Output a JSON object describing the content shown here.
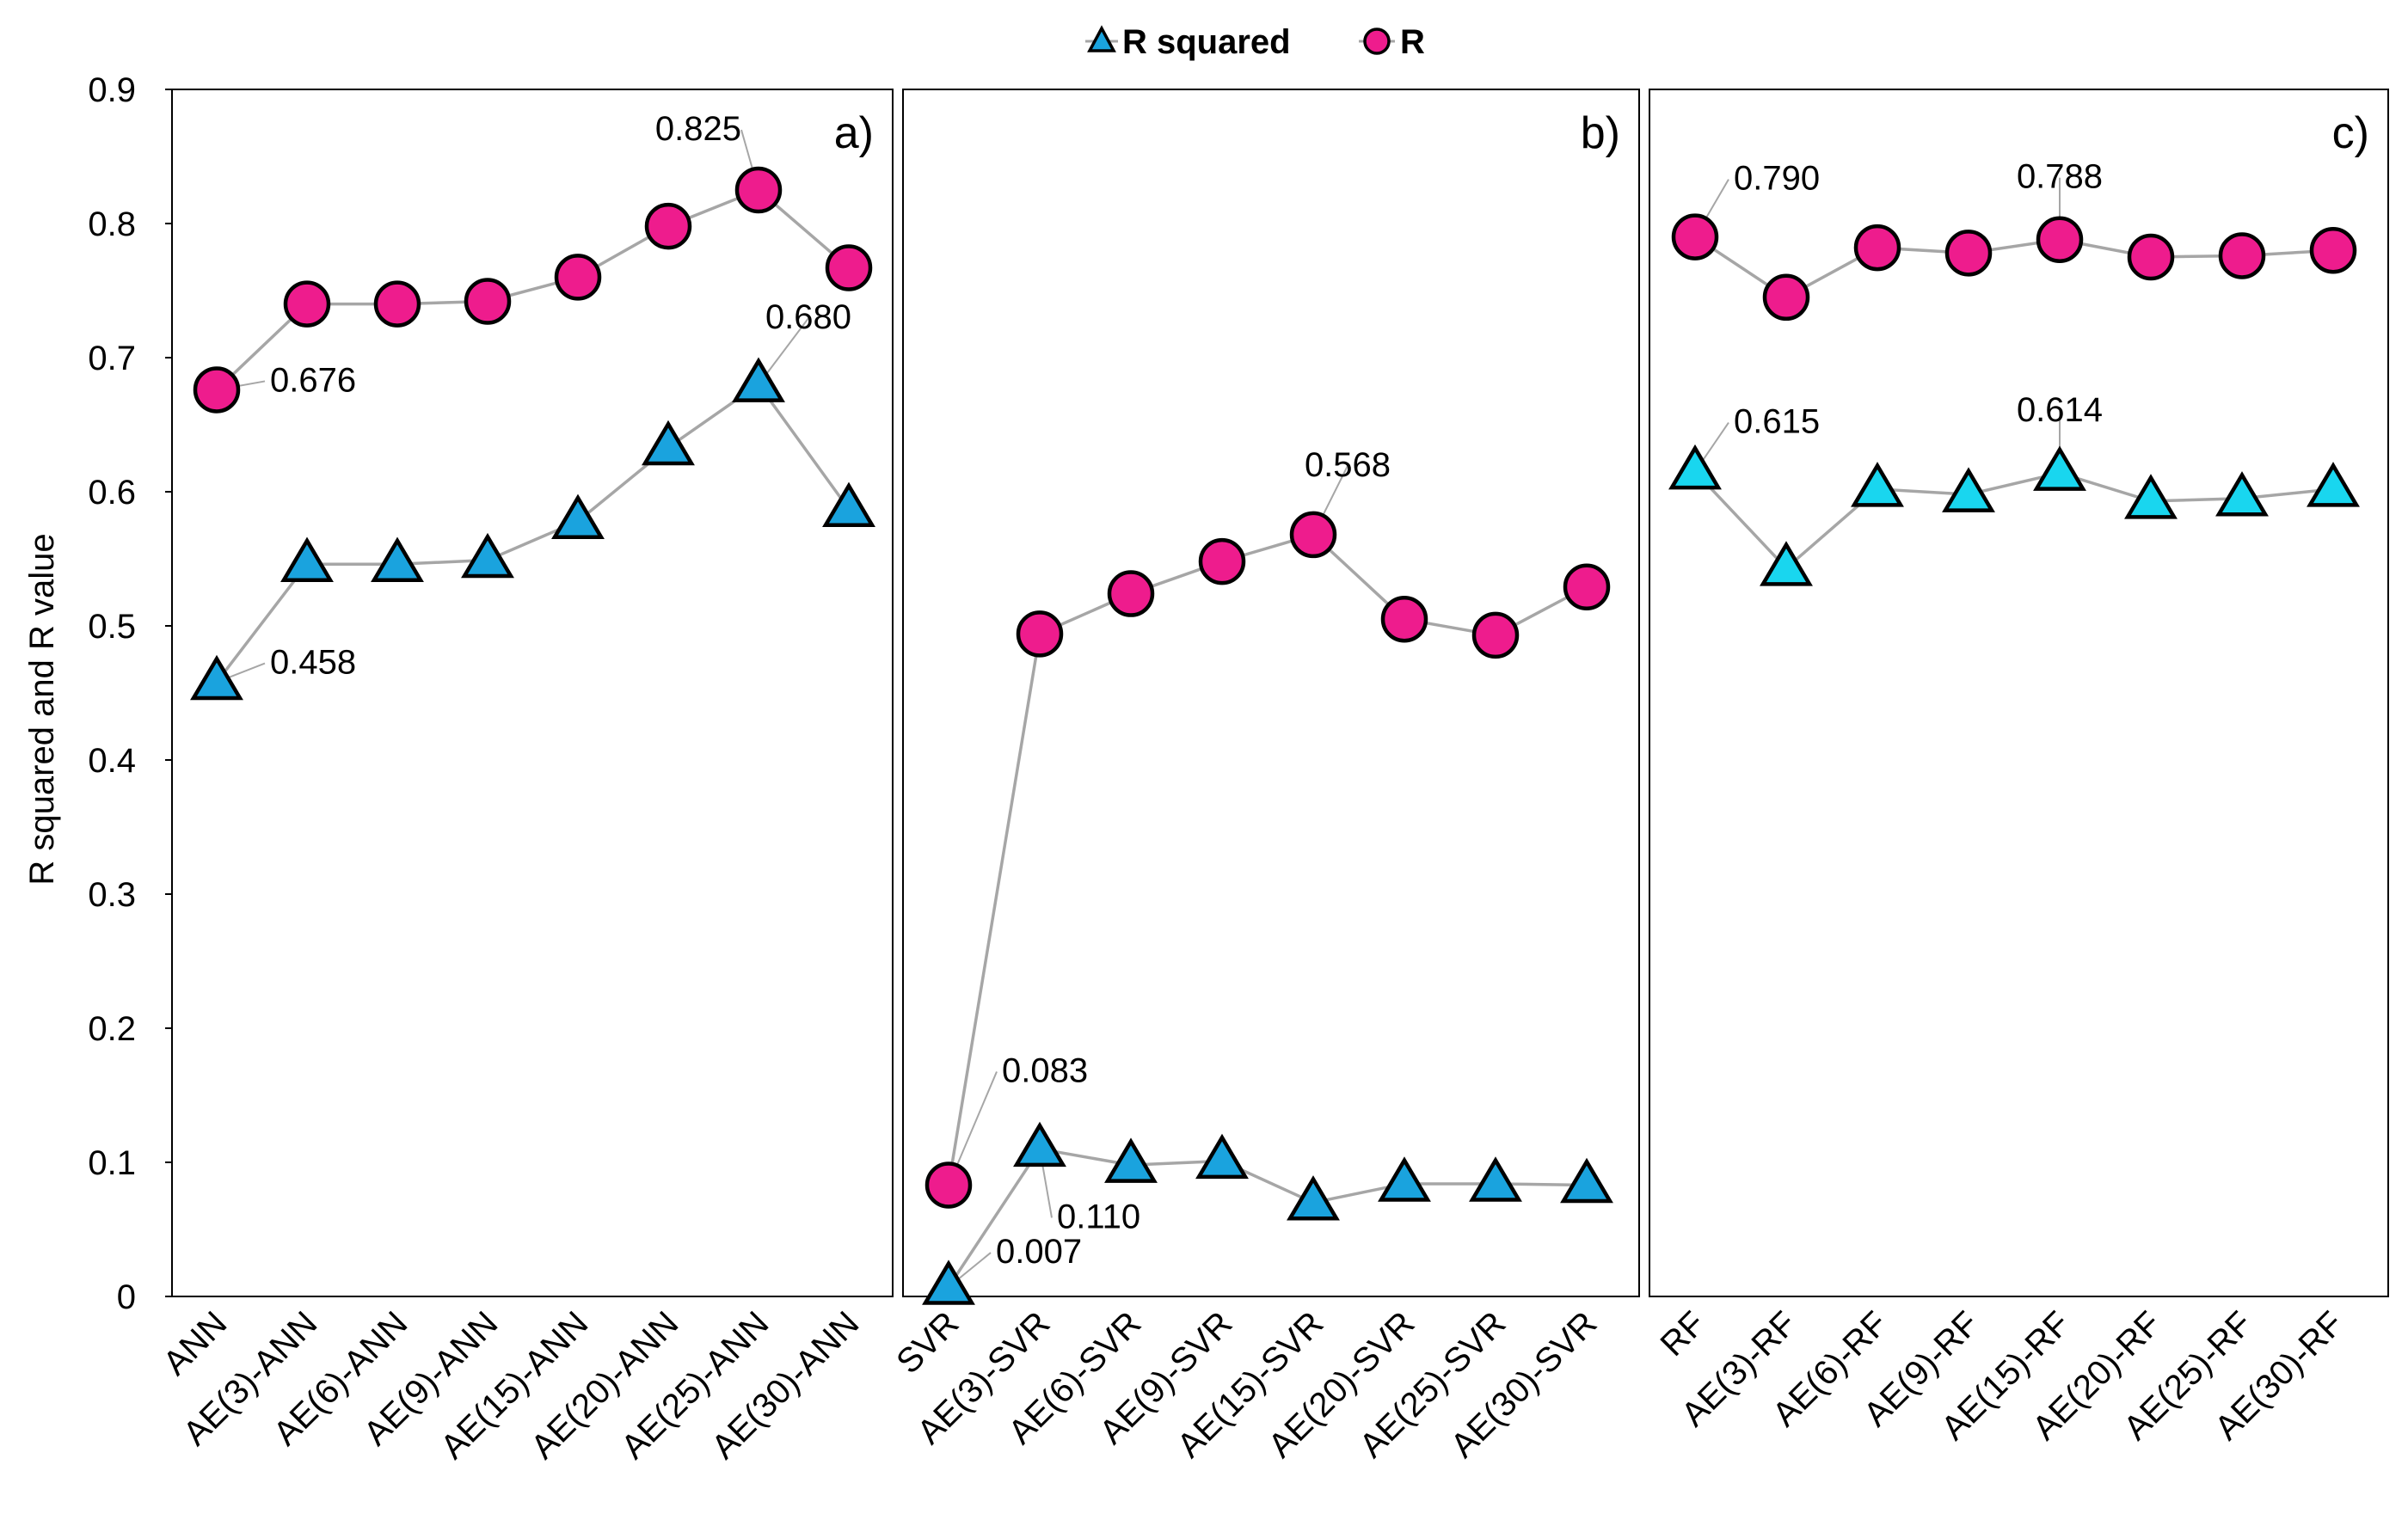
{
  "chart_data": {
    "type": "line",
    "ylabel": "R squared and R value",
    "ylim": [
      0,
      0.9
    ],
    "yticks": [
      "0",
      "0.1",
      "0.2",
      "0.3",
      "0.4",
      "0.5",
      "0.6",
      "0.7",
      "0.8",
      "0.9"
    ],
    "legend": {
      "position": "top-center",
      "entries": [
        {
          "name": "R squared",
          "marker": "triangle"
        },
        {
          "name": "R",
          "marker": "circle"
        }
      ]
    },
    "colors": {
      "r_squared_a": "#1aa3de",
      "r_squared_b": "#1aa3de",
      "r_squared_c": "#19d6ef",
      "r": "#ee1c8d",
      "line": "#a6a6a6",
      "axis": "#000000"
    },
    "panels": [
      {
        "tag": "a)",
        "categories": [
          "ANN",
          "AE(3)-ANN",
          "AE(6)-ANN",
          "AE(9)-ANN",
          "AE(15)-ANN",
          "AE(20)-ANN",
          "AE(25)-ANN",
          "AE(30)-ANN"
        ],
        "series": [
          {
            "name": "R squared",
            "values": [
              0.458,
              0.546,
              0.546,
              0.549,
              0.578,
              0.633,
              0.68,
              0.587
            ]
          },
          {
            "name": "R",
            "values": [
              0.676,
              0.74,
              0.74,
              0.742,
              0.76,
              0.798,
              0.825,
              0.767
            ]
          }
        ],
        "annotations": [
          {
            "series": "R squared",
            "index": 0,
            "text": "0.458"
          },
          {
            "series": "R",
            "index": 0,
            "text": "0.676"
          },
          {
            "series": "R squared",
            "index": 6,
            "text": "0.680"
          },
          {
            "series": "R",
            "index": 6,
            "text": "0.825"
          }
        ]
      },
      {
        "tag": "b)",
        "categories": [
          "SVR",
          "AE(3)-SVR",
          "AE(6)-SVR",
          "AE(9)-SVR",
          "AE(15)-SVR",
          "AE(20)-SVR",
          "AE(25)-SVR",
          "AE(30)-SVR"
        ],
        "series": [
          {
            "name": "R squared",
            "values": [
              0.007,
              0.11,
              0.098,
              0.101,
              0.07,
              0.084,
              0.084,
              0.083
            ]
          },
          {
            "name": "R",
            "values": [
              0.083,
              0.494,
              0.524,
              0.548,
              0.568,
              0.505,
              0.493,
              0.529
            ]
          }
        ],
        "annotations": [
          {
            "series": "R squared",
            "index": 0,
            "text": "0.007"
          },
          {
            "series": "R",
            "index": 0,
            "text": "0.083"
          },
          {
            "series": "R squared",
            "index": 1,
            "text": "0.110"
          },
          {
            "series": "R",
            "index": 4,
            "text": "0.568"
          }
        ]
      },
      {
        "tag": "c)",
        "categories": [
          "RF",
          "AE(3)-RF",
          "AE(6)-RF",
          "AE(9)-RF",
          "AE(15)-RF",
          "AE(20)-RF",
          "AE(25)-RF",
          "AE(30)-RF"
        ],
        "series": [
          {
            "name": "R squared",
            "values": [
              0.615,
              0.543,
              0.602,
              0.598,
              0.614,
              0.593,
              0.595,
              0.602
            ]
          },
          {
            "name": "R",
            "values": [
              0.79,
              0.745,
              0.782,
              0.778,
              0.788,
              0.775,
              0.776,
              0.78
            ]
          }
        ],
        "annotations": [
          {
            "series": "R squared",
            "index": 0,
            "text": "0.615"
          },
          {
            "series": "R",
            "index": 0,
            "text": "0.790"
          },
          {
            "series": "R squared",
            "index": 4,
            "text": "0.614"
          },
          {
            "series": "R",
            "index": 4,
            "text": "0.788"
          }
        ]
      }
    ]
  }
}
